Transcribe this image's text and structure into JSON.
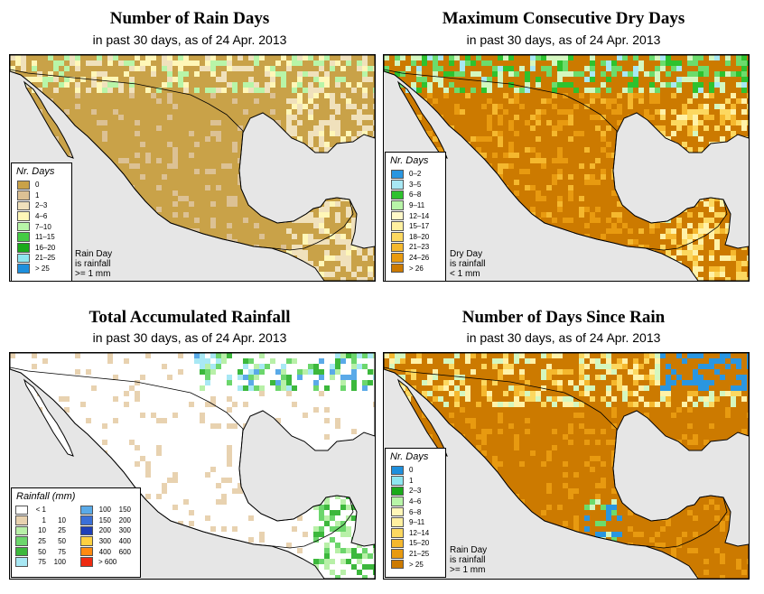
{
  "panels": [
    {
      "title": "Number of Rain Days",
      "subtitle": "in past 30 days, as of  24 Apr. 2013",
      "legend_title": "Nr. Days",
      "palette": [
        "#c9a248",
        "#dcc194",
        "#f0e1bc",
        "#fff7b8",
        "#b8f5a8",
        "#44cc44",
        "#1aaa1a",
        "#8ee6f0",
        "#1e8fdd"
      ],
      "legend": [
        {
          "label": "0",
          "color": "#c9a248"
        },
        {
          "label": "1",
          "color": "#dcc194"
        },
        {
          "label": "2–3",
          "color": "#f0e1bc"
        },
        {
          "label": "4–6",
          "color": "#fff7b8"
        },
        {
          "label": "7–10",
          "color": "#b8f5a8"
        },
        {
          "label": "11–15",
          "color": "#44cc44"
        },
        {
          "label": "16–20",
          "color": "#1aaa1a"
        },
        {
          "label": "21–25",
          "color": "#8ee6f0"
        },
        {
          "label": "> 25",
          "color": "#1e8fdd"
        }
      ],
      "note": [
        "Rain Day",
        "is rainfall",
        ">= 1 mm"
      ]
    },
    {
      "title": "Maximum Consecutive Dry Days",
      "subtitle": "in past 30 days, as of  24 Apr. 2013",
      "legend_title": "Nr. Days",
      "palette": [
        "#cc7a00",
        "#e89a10",
        "#f5b82e",
        "#fcd860",
        "#fff2a8",
        "#d4f7c0",
        "#6cdc6c",
        "#2ec22e",
        "#a8e8f4"
      ],
      "legend": [
        {
          "label": "0–2",
          "color": "#2a96e0"
        },
        {
          "label": "3–5",
          "color": "#a8e8f4"
        },
        {
          "label": "6–8",
          "color": "#2ec22e"
        },
        {
          "label": "9–11",
          "color": "#b8f5a8"
        },
        {
          "label": "12–14",
          "color": "#fff8c8"
        },
        {
          "label": "15–17",
          "color": "#fff0a0"
        },
        {
          "label": "18–20",
          "color": "#fcd860"
        },
        {
          "label": "21–23",
          "color": "#f5b82e"
        },
        {
          "label": "24–26",
          "color": "#e89a10"
        },
        {
          "label": "> 26",
          "color": "#cc7a00"
        }
      ],
      "note": [
        "Dry Day",
        "is rainfall",
        "< 1 mm"
      ]
    },
    {
      "title": "Total Accumulated Rainfall",
      "subtitle": "in past 30 days, as of  24 Apr. 2013",
      "legend_title": "Rainfall (mm)",
      "palette": [
        "#ffffff",
        "#ffffff",
        "#ffffff",
        "#ffffff",
        "#e8d2b0",
        "#b8f0a8",
        "#6cd66c",
        "#3cb83c",
        "#a8e8f4",
        "#5aaae8",
        "#3a6fd8"
      ],
      "legend": [
        {
          "a": "< 1",
          "b": "",
          "color": "#ffffff"
        },
        {
          "a": "1",
          "b": "10",
          "color": "#e8d2b0"
        },
        {
          "a": "10",
          "b": "25",
          "color": "#b8f0a8"
        },
        {
          "a": "25",
          "b": "50",
          "color": "#6cd66c"
        },
        {
          "a": "50",
          "b": "75",
          "color": "#3cb83c"
        },
        {
          "a": "75",
          "b": "100",
          "color": "#a8e8f4"
        },
        {
          "a": "100",
          "b": "150",
          "color": "#5aaae8"
        },
        {
          "a": "150",
          "b": "200",
          "color": "#3a6fd8"
        },
        {
          "a": "200",
          "b": "300",
          "color": "#1e3fb8"
        },
        {
          "a": "300",
          "b": "400",
          "color": "#ffd040"
        },
        {
          "a": "400",
          "b": "600",
          "color": "#ff8a10"
        },
        {
          "a": "> 600",
          "b": "",
          "color": "#ee2a10"
        }
      ],
      "note": []
    },
    {
      "title": "Number of Days Since Rain",
      "subtitle": "in past 30 days, as of  24 Apr. 2013",
      "legend_title": "Nr. Days",
      "palette": [
        "#cc7a00",
        "#cc7a00",
        "#e89a10",
        "#f5b82e",
        "#fcd860",
        "#fff2a8",
        "#d4f7c0",
        "#6cdc6c",
        "#2a96e0",
        "#2a96e0"
      ],
      "legend": [
        {
          "label": "0",
          "color": "#1e8fdd"
        },
        {
          "label": "1",
          "color": "#8ee6f0"
        },
        {
          "label": "2–3",
          "color": "#1aaa1a"
        },
        {
          "label": "4–6",
          "color": "#b8f5a8"
        },
        {
          "label": "6–8",
          "color": "#fff7b8"
        },
        {
          "label": "9–11",
          "color": "#fff0a0"
        },
        {
          "label": "12–14",
          "color": "#fcd860"
        },
        {
          "label": "15–20",
          "color": "#f5b82e"
        },
        {
          "label": "21–25",
          "color": "#e89a10"
        },
        {
          "label": "> 25",
          "color": "#cc7a00"
        }
      ],
      "note": [
        "Rain Day",
        "is rainfall",
        ">= 1 mm"
      ]
    }
  ],
  "colors": {
    "ocean": "#e6e6e6",
    "border": "#000000"
  }
}
